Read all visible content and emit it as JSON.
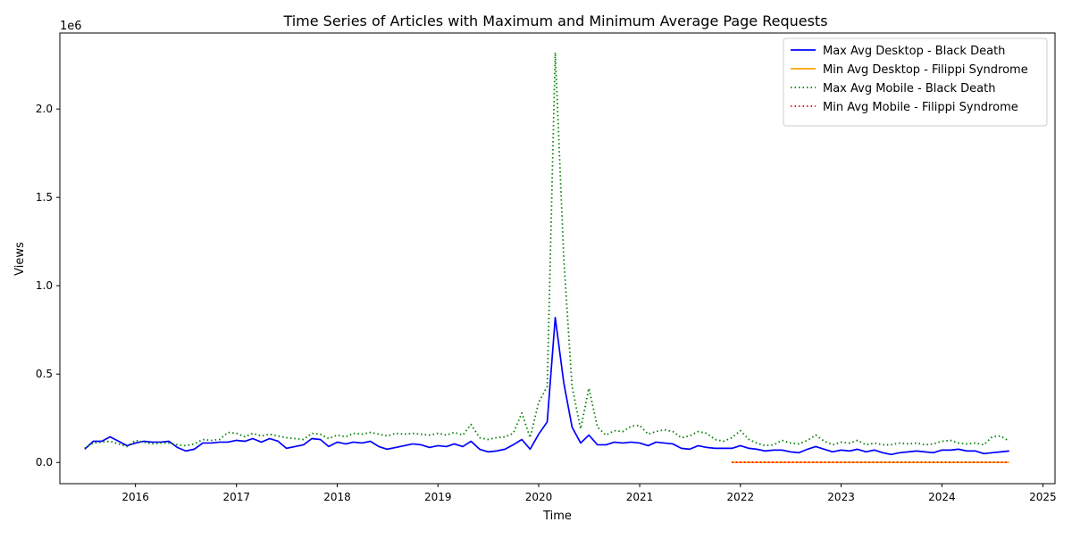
{
  "chart_data": {
    "type": "line",
    "title": "Time Series of Articles with Maximum and Minimum Average Page Requests",
    "xlabel": "Time",
    "ylabel": "Views",
    "y_offset_label": "1e6",
    "xlim": [
      "2015-04-02",
      "2025-02-14"
    ],
    "ylim": [
      -120000,
      2430000
    ],
    "x_ticks": [
      {
        "date": "2016-01-01",
        "label": "2016"
      },
      {
        "date": "2017-01-01",
        "label": "2017"
      },
      {
        "date": "2018-01-01",
        "label": "2018"
      },
      {
        "date": "2019-01-01",
        "label": "2019"
      },
      {
        "date": "2020-01-01",
        "label": "2020"
      },
      {
        "date": "2021-01-01",
        "label": "2021"
      },
      {
        "date": "2022-01-01",
        "label": "2022"
      },
      {
        "date": "2023-01-01",
        "label": "2023"
      },
      {
        "date": "2024-01-01",
        "label": "2024"
      },
      {
        "date": "2025-01-01",
        "label": "2025"
      }
    ],
    "y_ticks": [
      {
        "value": 0,
        "label": "0.0"
      },
      {
        "value": 500000,
        "label": "0.5"
      },
      {
        "value": 1000000,
        "label": "1.0"
      },
      {
        "value": 1500000,
        "label": "1.5"
      },
      {
        "value": 2000000,
        "label": "2.0"
      }
    ],
    "grid": false,
    "legend_position": "top-right",
    "series": [
      {
        "name": "Max Avg Desktop - Black Death",
        "color": "#0000ff",
        "style": "solid",
        "start": "2015-07",
        "values": [
          75000,
          120000,
          120000,
          145000,
          120000,
          95000,
          110000,
          120000,
          115000,
          115000,
          120000,
          85000,
          65000,
          75000,
          110000,
          110000,
          115000,
          115000,
          125000,
          120000,
          135000,
          115000,
          135000,
          120000,
          80000,
          90000,
          100000,
          135000,
          130000,
          90000,
          115000,
          105000,
          115000,
          110000,
          120000,
          90000,
          75000,
          85000,
          95000,
          105000,
          100000,
          85000,
          95000,
          90000,
          105000,
          90000,
          120000,
          75000,
          60000,
          65000,
          75000,
          100000,
          130000,
          75000,
          160000,
          230000,
          820000,
          450000,
          200000,
          110000,
          155000,
          100000,
          100000,
          115000,
          110000,
          115000,
          110000,
          95000,
          115000,
          110000,
          105000,
          80000,
          75000,
          95000,
          85000,
          80000,
          80000,
          80000,
          95000,
          80000,
          75000,
          65000,
          70000,
          70000,
          60000,
          55000,
          75000,
          90000,
          75000,
          60000,
          70000,
          65000,
          75000,
          60000,
          70000,
          55000,
          45000,
          55000,
          60000,
          65000,
          60000,
          55000,
          70000,
          70000,
          75000,
          65000,
          65000,
          50000,
          55000,
          60000,
          65000
        ]
      },
      {
        "name": "Min Avg Desktop - Filippi Syndrome",
        "color": "#ffa500",
        "style": "solid",
        "start": "2021-12",
        "values": [
          500,
          500,
          500,
          500,
          500,
          500,
          500,
          500,
          500,
          500,
          500,
          500,
          500,
          500,
          500,
          500,
          500,
          500,
          500,
          500,
          500,
          500,
          500,
          500,
          500,
          500,
          500,
          500,
          500,
          500,
          500,
          500,
          500,
          500
        ]
      },
      {
        "name": "Max Avg Mobile - Black Death",
        "color": "#008000",
        "style": "dotted",
        "start": "2015-07",
        "values": [
          80000,
          110000,
          115000,
          120000,
          105000,
          90000,
          125000,
          115000,
          105000,
          110000,
          110000,
          100000,
          95000,
          105000,
          130000,
          125000,
          130000,
          170000,
          165000,
          145000,
          165000,
          150000,
          160000,
          150000,
          140000,
          135000,
          130000,
          165000,
          160000,
          135000,
          155000,
          145000,
          165000,
          160000,
          170000,
          160000,
          150000,
          165000,
          160000,
          165000,
          160000,
          155000,
          165000,
          155000,
          170000,
          155000,
          215000,
          140000,
          130000,
          140000,
          145000,
          165000,
          280000,
          140000,
          340000,
          430000,
          2320000,
          1150000,
          430000,
          190000,
          420000,
          200000,
          155000,
          180000,
          175000,
          205000,
          210000,
          160000,
          175000,
          185000,
          175000,
          140000,
          150000,
          175000,
          165000,
          130000,
          120000,
          140000,
          180000,
          130000,
          110000,
          95000,
          100000,
          125000,
          110000,
          105000,
          125000,
          155000,
          120000,
          100000,
          115000,
          110000,
          125000,
          100000,
          110000,
          100000,
          100000,
          110000,
          105000,
          110000,
          100000,
          105000,
          120000,
          125000,
          110000,
          105000,
          110000,
          100000,
          145000,
          150000,
          120000
        ]
      },
      {
        "name": "Min Avg Mobile - Filippi Syndrome",
        "color": "#ff0000",
        "style": "dotted",
        "start": "2021-12",
        "values": [
          800,
          800,
          800,
          800,
          800,
          800,
          800,
          800,
          800,
          800,
          800,
          800,
          800,
          800,
          800,
          800,
          800,
          800,
          800,
          800,
          800,
          800,
          800,
          800,
          800,
          800,
          800,
          800,
          800,
          800,
          800,
          800,
          800,
          800
        ]
      }
    ]
  }
}
